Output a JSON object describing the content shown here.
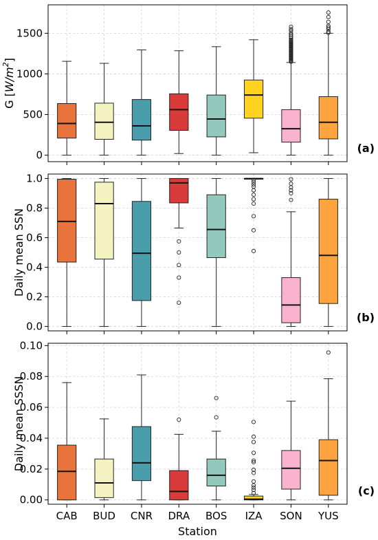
{
  "chart_data": [
    {
      "type": "box",
      "panel_label": "(a)",
      "ylabel": "G [W/m²]",
      "ylabel_main": "G ",
      "ylabel_open": "[",
      "ylabel_unit": "W/m",
      "ylabel_sup": "2",
      "ylabel_close": "]",
      "ylim": [
        -80,
        1850
      ],
      "yticks": [
        0,
        500,
        1000,
        1500
      ],
      "grid": true,
      "show_xticks": false,
      "categories": [
        "CAB",
        "BUD",
        "CNR",
        "DRA",
        "BOS",
        "IZA",
        "SON",
        "YUS"
      ],
      "colors": [
        "#E8743B",
        "#F5F2C2",
        "#4A9DAA",
        "#D93A3A",
        "#93C9BC",
        "#FFD320",
        "#F9B3CF",
        "#FFA33F"
      ],
      "boxes": [
        {
          "whislo": 0,
          "q1": 210,
          "med": 390,
          "q3": 635,
          "whishi": 1155,
          "fliers": []
        },
        {
          "whislo": 0,
          "q1": 195,
          "med": 405,
          "q3": 640,
          "whishi": 1130,
          "fliers": []
        },
        {
          "whislo": 0,
          "q1": 185,
          "med": 360,
          "q3": 685,
          "whishi": 1295,
          "fliers": []
        },
        {
          "whislo": 20,
          "q1": 305,
          "med": 560,
          "q3": 755,
          "whishi": 1285,
          "fliers": []
        },
        {
          "whislo": 0,
          "q1": 225,
          "med": 445,
          "q3": 740,
          "whishi": 1335,
          "fliers": []
        },
        {
          "whislo": 30,
          "q1": 455,
          "med": 740,
          "q3": 925,
          "whishi": 1420,
          "fliers": []
        },
        {
          "whislo": 0,
          "q1": 160,
          "med": 325,
          "q3": 560,
          "whishi": 1140,
          "fliers": [
            1150,
            1160,
            1170,
            1180,
            1190,
            1200,
            1210,
            1220,
            1230,
            1240,
            1250,
            1260,
            1270,
            1280,
            1290,
            1300,
            1310,
            1320,
            1330,
            1340,
            1350,
            1360,
            1370,
            1380,
            1390,
            1400,
            1410,
            1420,
            1440,
            1460,
            1480,
            1500,
            1530,
            1550,
            1580
          ]
        },
        {
          "whislo": 0,
          "q1": 200,
          "med": 405,
          "q3": 720,
          "whishi": 1500,
          "fliers": [
            1505,
            1520,
            1550,
            1570,
            1590,
            1640,
            1700,
            1755
          ]
        }
      ]
    },
    {
      "type": "box",
      "panel_label": "(b)",
      "ylabel": "Daily mean SSN",
      "ylim": [
        -0.03,
        1.03
      ],
      "yticks": [
        0.0,
        0.2,
        0.4,
        0.6,
        0.8,
        1.0
      ],
      "ytick_labels": [
        "0.0",
        "0.2",
        "0.4",
        "0.6",
        "0.8",
        "1.0"
      ],
      "grid": true,
      "show_xticks": false,
      "categories": [
        "CAB",
        "BUD",
        "CNR",
        "DRA",
        "BOS",
        "IZA",
        "SON",
        "YUS"
      ],
      "colors": [
        "#E8743B",
        "#F5F2C2",
        "#4A9DAA",
        "#D93A3A",
        "#93C9BC",
        "#FFD320",
        "#F9B3CF",
        "#FFA33F"
      ],
      "boxes": [
        {
          "whislo": 0.0,
          "q1": 0.435,
          "med": 0.71,
          "q3": 0.995,
          "whishi": 1.0,
          "fliers": []
        },
        {
          "whislo": 0.0,
          "q1": 0.455,
          "med": 0.83,
          "q3": 0.975,
          "whishi": 1.0,
          "fliers": []
        },
        {
          "whislo": 0.0,
          "q1": 0.175,
          "med": 0.495,
          "q3": 0.845,
          "whishi": 1.0,
          "fliers": []
        },
        {
          "whislo": 0.665,
          "q1": 0.835,
          "med": 0.97,
          "q3": 1.0,
          "whishi": 1.0,
          "fliers": [
            0.16,
            0.33,
            0.415,
            0.5,
            0.575
          ]
        },
        {
          "whislo": 0.0,
          "q1": 0.465,
          "med": 0.655,
          "q3": 0.89,
          "whishi": 1.0,
          "fliers": []
        },
        {
          "whislo": 0.995,
          "q1": 0.997,
          "med": 0.999,
          "q3": 1.0,
          "whishi": 1.0,
          "fliers": [
            0.51,
            0.65,
            0.745,
            0.83,
            0.86,
            0.89,
            0.92,
            0.945,
            0.96,
            0.975,
            0.99
          ]
        },
        {
          "whislo": 0.0,
          "q1": 0.025,
          "med": 0.145,
          "q3": 0.33,
          "whishi": 0.775,
          "fliers": [
            0.855,
            0.9,
            0.92,
            0.94,
            0.965,
            0.995
          ]
        },
        {
          "whislo": 0.0,
          "q1": 0.155,
          "med": 0.48,
          "q3": 0.86,
          "whishi": 1.0,
          "fliers": []
        }
      ]
    },
    {
      "type": "box",
      "panel_label": "(c)",
      "ylabel": "Daily mean SSSN",
      "xlabel": "Station",
      "ylim": [
        -0.0028,
        0.1015
      ],
      "yticks": [
        0.0,
        0.02,
        0.04,
        0.06,
        0.08,
        0.1
      ],
      "ytick_labels": [
        "0.00",
        "0.02",
        "0.04",
        "0.06",
        "0.08",
        "0.10"
      ],
      "grid": true,
      "show_xticks": true,
      "categories": [
        "CAB",
        "BUD",
        "CNR",
        "DRA",
        "BOS",
        "IZA",
        "SON",
        "YUS"
      ],
      "colors": [
        "#E8743B",
        "#F5F2C2",
        "#4A9DAA",
        "#D93A3A",
        "#93C9BC",
        "#FFD320",
        "#F9B3CF",
        "#FFA33F"
      ],
      "boxes": [
        {
          "whislo": 0.0,
          "q1": 0.0,
          "med": 0.0185,
          "q3": 0.0355,
          "whishi": 0.076,
          "fliers": []
        },
        {
          "whislo": 0.0,
          "q1": 0.0015,
          "med": 0.011,
          "q3": 0.0265,
          "whishi": 0.0525,
          "fliers": []
        },
        {
          "whislo": 0.0,
          "q1": 0.0125,
          "med": 0.024,
          "q3": 0.0475,
          "whishi": 0.081,
          "fliers": []
        },
        {
          "whislo": 0.0,
          "q1": 0.0,
          "med": 0.0055,
          "q3": 0.019,
          "whishi": 0.0425,
          "fliers": [
            0.052
          ]
        },
        {
          "whislo": 0.0,
          "q1": 0.009,
          "med": 0.016,
          "q3": 0.0265,
          "whishi": 0.0445,
          "fliers": [
            0.0535,
            0.066
          ]
        },
        {
          "whislo": 0.0,
          "q1": 0.0,
          "med": 0.0005,
          "q3": 0.0025,
          "whishi": 0.0035,
          "fliers": [
            0.0045,
            0.0065,
            0.008,
            0.0095,
            0.012,
            0.0175,
            0.0195,
            0.0245,
            0.0255,
            0.0305,
            0.0375,
            0.041,
            0.0505
          ]
        },
        {
          "whislo": 0.0,
          "q1": 0.007,
          "med": 0.0205,
          "q3": 0.032,
          "whishi": 0.064,
          "fliers": []
        },
        {
          "whislo": 0.0,
          "q1": 0.003,
          "med": 0.0255,
          "q3": 0.039,
          "whishi": 0.0785,
          "fliers": [
            0.0955
          ]
        }
      ]
    }
  ]
}
